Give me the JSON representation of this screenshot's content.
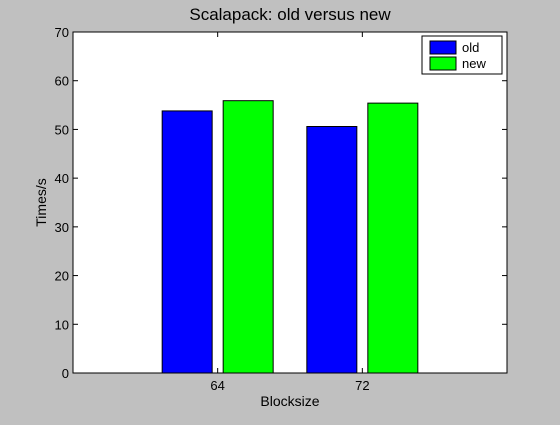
{
  "chart_data": {
    "type": "bar",
    "title": "Scalapack: old versus new",
    "xlabel": "Blocksize",
    "ylabel": "Times/s",
    "categories": [
      "64",
      "72"
    ],
    "series": [
      {
        "name": "old",
        "color": "#0000ff",
        "values": [
          53.8,
          50.6
        ]
      },
      {
        "name": "new",
        "color": "#00ff00",
        "values": [
          55.9,
          55.4
        ]
      }
    ],
    "ylim": [
      0,
      70
    ],
    "yticks": [
      0,
      10,
      20,
      30,
      40,
      50,
      60,
      70
    ],
    "grid": false,
    "legend_position": "top-right",
    "background_color": "#c0c0c0",
    "plot_background_color": "#ffffff"
  }
}
